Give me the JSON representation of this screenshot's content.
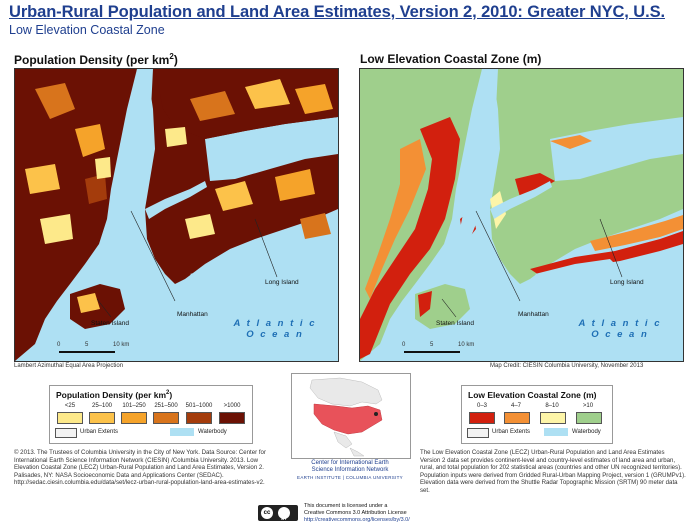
{
  "header": {
    "title": "Urban-Rural Population and Land Area Estimates, Version 2, 2010: Greater NYC, U.S.",
    "subtitle": "Low Elevation Coastal Zone"
  },
  "left_map": {
    "title_main": "Population Density (per km",
    "title_sup": "2",
    "title_end": ")",
    "labels": {
      "staten_island": "Staten Island",
      "manhattan": "Manhattan",
      "long_island": "Long Island",
      "ocean_line1": "A t l a n t i c",
      "ocean_line2": "O c e a n"
    },
    "scale": {
      "t0": "0",
      "t5": "5",
      "t10": "10 km"
    },
    "projection": "Lambert Azimuthal Equal Area Projection"
  },
  "right_map": {
    "title": "Low Elevation Coastal Zone (m)",
    "labels": {
      "staten_island": "Staten Island",
      "manhattan": "Manhattan",
      "long_island": "Long Island",
      "ocean_line1": "A t l a n t i c",
      "ocean_line2": "O c e a n"
    },
    "scale": {
      "t0": "0",
      "t5": "5",
      "t10": "10 km"
    },
    "credit": "Map Credit: CIESIN Columbia University, November 2013"
  },
  "legend_density": {
    "title_main": "Population Density (per km",
    "title_sup": "2",
    "title_end": ")",
    "classes": [
      {
        "label": "<25",
        "color": "#fde98a"
      },
      {
        "label": "25–100",
        "color": "#fcc24a"
      },
      {
        "label": "101–250",
        "color": "#f5a32a"
      },
      {
        "label": "251–500",
        "color": "#d8741c"
      },
      {
        "label": "501–1000",
        "color": "#a43c0c"
      },
      {
        "label": ">1000",
        "color": "#6b1104"
      }
    ],
    "urban_extents": "Urban Extents",
    "waterbody": "Waterbody"
  },
  "legend_lecz": {
    "title": "Low Elevation Coastal Zone (m)",
    "classes": [
      {
        "label": "0–3",
        "color": "#d2200e"
      },
      {
        "label": "4–7",
        "color": "#f39035"
      },
      {
        "label": "8–10",
        "color": "#fdf5a8"
      },
      {
        "label": ">10",
        "color": "#9fcf8c"
      }
    ],
    "urban_extents": "Urban Extents",
    "waterbody": "Waterbody"
  },
  "colors": {
    "water": "#aee0f3",
    "land_dense": "#6b1104",
    "land_green": "#9fcf8c",
    "title_blue": "#1f3f8f",
    "ocean_text": "#1e6fb5",
    "inset_usa": "#e8525a"
  },
  "notes": {
    "left": "© 2013. The Trustees of Columbia University in the City of New York. Data Source: Center for International Earth Science Information Network (CIESIN) /Columbia University. 2013. Low Elevation Coastal Zone (LECZ) Urban-Rural Population and Land Area Estimates, Version 2. Palisades, NY: NASA Socioeconomic Data and Applications Center (SEDAC). http://sedac.ciesin.columbia.edu/data/set/lecz-urban-rural-population-land-area-estimates-v2.",
    "right": "The Low Elevation Coastal Zone (LECZ) Urban-Rural Population and Land Area Estimates Version 2 data set provides continent-level and country-level estimates of land area and urban, rural, and total population for 202 statistical areas (countries and other UN recognized territories). Population inputs were derived from Gridded Rural-Urban Mapping Project, version 1 (GRUMPv1). Elevation data were derived from the Shuttle Radar Topographic Mission (SRTM) 90 meter data set."
  },
  "ciesin": {
    "line1": "Center for International Earth",
    "line2": "Science Information Network",
    "line3": "EARTH INSTITUTE | COLUMBIA UNIVERSITY"
  },
  "license": {
    "cc": "cc",
    "by": "BY",
    "line1": "This document is licensed under a",
    "line2": "Creative Commons 3.0 Attribution License",
    "line3": "http://creativecommons.org/licenses/by/3.0/"
  }
}
